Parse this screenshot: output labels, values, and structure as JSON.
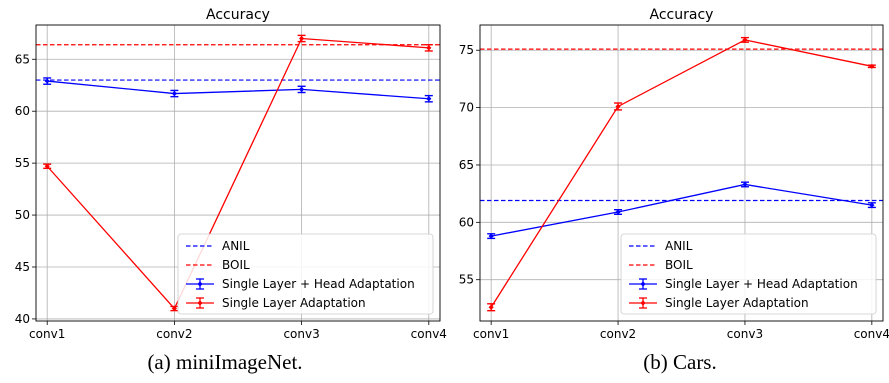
{
  "chart_data": [
    {
      "type": "line",
      "title": "Accuracy",
      "caption": "(a) miniImageNet.",
      "categories": [
        "conv1",
        "conv2",
        "conv3",
        "conv4"
      ],
      "ylim": [
        39.8,
        68.3
      ],
      "yticks": [
        40,
        45,
        50,
        55,
        60,
        65
      ],
      "grid": true,
      "legend_position": "lower-right",
      "hlines": [
        {
          "name": "ANIL",
          "value": 63.0,
          "color": "#0000ff",
          "style": "dashed"
        },
        {
          "name": "BOIL",
          "value": 66.4,
          "color": "#ff0000",
          "style": "dashed"
        }
      ],
      "series": [
        {
          "name": "Single Layer + Head Adaptation",
          "color": "#0000ff",
          "values": [
            62.9,
            61.7,
            62.1,
            61.2
          ],
          "errors": [
            0.3,
            0.3,
            0.3,
            0.3
          ]
        },
        {
          "name": "Single Layer Adaptation",
          "color": "#ff0000",
          "values": [
            54.7,
            41.0,
            67.0,
            66.1
          ],
          "errors": [
            0.2,
            0.2,
            0.3,
            0.3
          ]
        }
      ]
    },
    {
      "type": "line",
      "title": "Accuracy",
      "caption": "(b) Cars.",
      "categories": [
        "conv1",
        "conv2",
        "conv3",
        "conv4"
      ],
      "ylim": [
        51.4,
        77.2
      ],
      "yticks": [
        55,
        60,
        65,
        70,
        75
      ],
      "grid": true,
      "legend_position": "lower-right",
      "hlines": [
        {
          "name": "ANIL",
          "value": 61.9,
          "color": "#0000ff",
          "style": "dashed"
        },
        {
          "name": "BOIL",
          "value": 75.1,
          "color": "#ff0000",
          "style": "dashed"
        }
      ],
      "series": [
        {
          "name": "Single Layer + Head Adaptation",
          "color": "#0000ff",
          "values": [
            58.8,
            60.9,
            63.3,
            61.5
          ],
          "errors": [
            0.2,
            0.2,
            0.2,
            0.2
          ]
        },
        {
          "name": "Single Layer Adaptation",
          "color": "#ff0000",
          "values": [
            52.6,
            70.1,
            75.9,
            73.6
          ],
          "errors": [
            0.3,
            0.3,
            0.2,
            0.1
          ]
        }
      ]
    }
  ]
}
